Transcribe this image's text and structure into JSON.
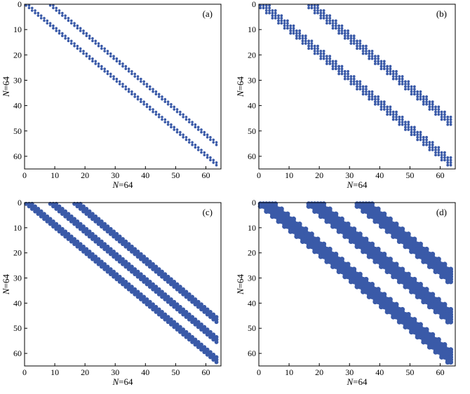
{
  "figure": {
    "dot_color": "#3a5aa8",
    "axis_color": "#000000"
  },
  "chart_data": [
    {
      "type": "scatter",
      "panel_label": "(a)",
      "xlabel": "N=64",
      "ylabel": "N=64",
      "xlim": [
        0,
        65
      ],
      "ylim": [
        65,
        0
      ],
      "x_ticks": [
        0,
        10,
        20,
        30,
        40,
        50,
        60
      ],
      "y_ticks": [
        0,
        10,
        20,
        30,
        40,
        50,
        60
      ],
      "grid": false,
      "matrix_size": 64,
      "block_size": 1,
      "band_offsets": [
        0,
        8
      ],
      "band_width": 2
    },
    {
      "type": "scatter",
      "panel_label": "(b)",
      "xlabel": "N=64",
      "ylabel": "N=64",
      "xlim": [
        0,
        65
      ],
      "ylim": [
        65,
        0
      ],
      "x_ticks": [
        0,
        10,
        20,
        30,
        40,
        50,
        60
      ],
      "y_ticks": [
        0,
        10,
        20,
        30,
        40,
        50,
        60
      ],
      "grid": false,
      "matrix_size": 64,
      "block_size": 2,
      "band_offsets": [
        0,
        8
      ],
      "band_width": 2
    },
    {
      "type": "scatter",
      "panel_label": "(c)",
      "xlabel": "N=64",
      "ylabel": "N=64",
      "xlim": [
        0,
        65
      ],
      "ylim": [
        65,
        0
      ],
      "x_ticks": [
        0,
        10,
        20,
        30,
        40,
        50,
        60
      ],
      "y_ticks": [
        0,
        10,
        20,
        30,
        40,
        50,
        60
      ],
      "grid": false,
      "matrix_size": 64,
      "block_size": 1,
      "band_offsets": [
        0,
        8,
        16
      ],
      "band_width": 3
    },
    {
      "type": "scatter",
      "panel_label": "(d)",
      "xlabel": "N=64",
      "ylabel": "N=64",
      "xlim": [
        0,
        65
      ],
      "ylim": [
        65,
        0
      ],
      "x_ticks": [
        0,
        10,
        20,
        30,
        40,
        50,
        60
      ],
      "y_ticks": [
        0,
        10,
        20,
        30,
        40,
        50,
        60
      ],
      "grid": false,
      "matrix_size": 64,
      "block_size": 2,
      "band_offsets": [
        0,
        8,
        16
      ],
      "band_width": 3
    }
  ]
}
